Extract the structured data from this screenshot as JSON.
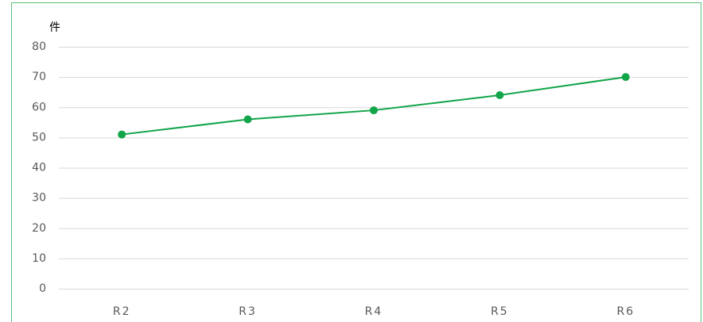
{
  "chart_data": {
    "type": "line",
    "y_label": "件",
    "categories": [
      "R2",
      "R3",
      "R4",
      "R5",
      "R6"
    ],
    "series": [
      {
        "color": "#12a54a",
        "values": [
          51,
          56,
          59,
          64,
          70
        ]
      }
    ],
    "ylim": [
      0,
      80
    ],
    "yticks": [
      0,
      10,
      20,
      30,
      40,
      50,
      60,
      70,
      80
    ],
    "grid": true
  }
}
